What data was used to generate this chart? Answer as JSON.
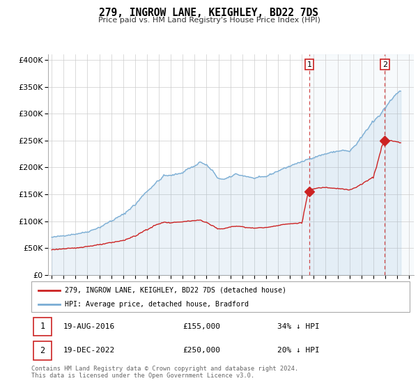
{
  "title": "279, INGROW LANE, KEIGHLEY, BD22 7DS",
  "subtitle": "Price paid vs. HM Land Registry's House Price Index (HPI)",
  "ylim": [
    0,
    410000
  ],
  "yticks": [
    0,
    50000,
    100000,
    150000,
    200000,
    250000,
    300000,
    350000,
    400000
  ],
  "hpi_color": "#7aadd4",
  "hpi_fill_color": "#ddeeff",
  "price_color": "#cc2222",
  "vline_color": "#cc2222",
  "transaction1_x": 2016.634,
  "transaction1_y": 155000,
  "transaction2_x": 2022.962,
  "transaction2_y": 250000,
  "transaction1": {
    "date": "19-AUG-2016",
    "price": 155000,
    "pct": "34%"
  },
  "transaction2": {
    "date": "19-DEC-2022",
    "price": 250000,
    "pct": "20%"
  },
  "legend_line1": "279, INGROW LANE, KEIGHLEY, BD22 7DS (detached house)",
  "legend_line2": "HPI: Average price, detached house, Bradford",
  "footer": "Contains HM Land Registry data © Crown copyright and database right 2024.\nThis data is licensed under the Open Government Licence v3.0.",
  "xlim_left": 1994.7,
  "xlim_right": 2025.4
}
